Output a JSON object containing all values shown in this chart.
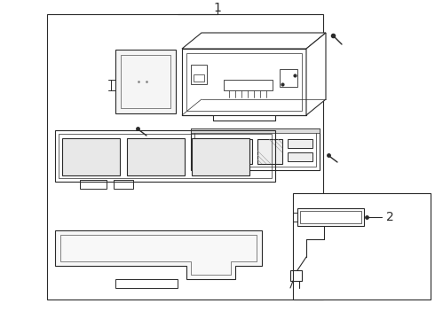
{
  "title": "1",
  "label2": "2",
  "bg_color": "#ffffff",
  "line_color": "#2a2a2a",
  "line_width": 0.8,
  "fig_width": 4.9,
  "fig_height": 3.6,
  "dpi": 100
}
